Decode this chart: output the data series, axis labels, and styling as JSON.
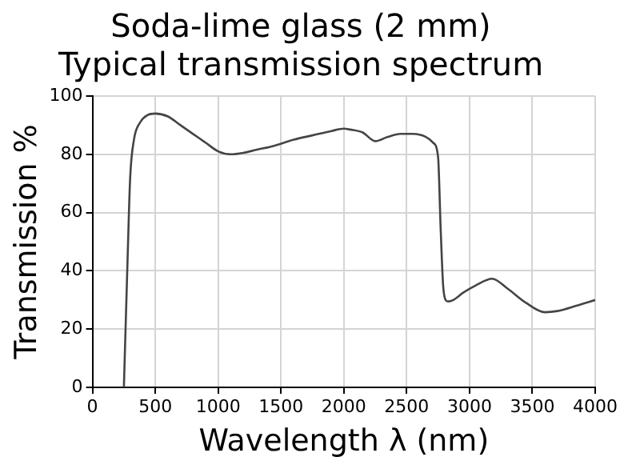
{
  "chart_data": {
    "type": "line",
    "title": [
      "Soda-lime glass (2 mm)",
      "Typical transmission spectrum"
    ],
    "xlabel": "Wavelength λ (nm)",
    "ylabel": "Transmission %",
    "x": [
      250,
      280,
      300,
      330,
      380,
      440,
      500,
      600,
      700,
      800,
      900,
      1000,
      1100,
      1200,
      1300,
      1450,
      1600,
      1750,
      1900,
      2000,
      2050,
      2150,
      2250,
      2350,
      2450,
      2550,
      2650,
      2710,
      2750,
      2770,
      2790,
      2810,
      2830,
      2870,
      2950,
      3050,
      3180,
      3300,
      3450,
      3600,
      3700,
      3850,
      4000
    ],
    "series": [
      {
        "color": "#444444",
        "values": [
          0,
          45,
          72,
          85,
          91,
          93.5,
          94,
          93,
          90,
          87,
          84,
          81,
          80,
          80.5,
          81.5,
          83,
          85,
          86.5,
          88,
          88.8,
          88.5,
          87.5,
          84.5,
          86,
          87,
          87,
          86,
          84,
          79,
          55,
          35,
          30,
          29.5,
          30,
          32.5,
          35,
          37.3,
          34,
          29,
          25.8,
          26.2,
          28,
          30
        ]
      }
    ],
    "xlim": [
      0,
      4000
    ],
    "xticks": [
      0,
      500,
      1000,
      1500,
      2000,
      2500,
      3000,
      3500,
      4000
    ],
    "ylim": [
      0,
      100
    ],
    "yticks": [
      0,
      20,
      40,
      60,
      80,
      100
    ],
    "grid": true,
    "legend": false,
    "marker": "none",
    "line_style": "solid"
  }
}
